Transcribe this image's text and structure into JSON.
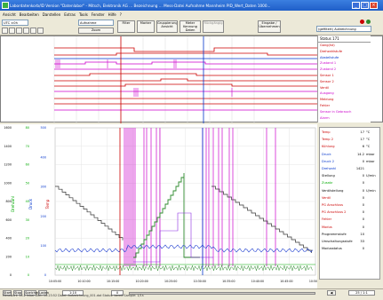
{
  "window": {
    "title": "Labordatenkorb/ID Version \"Datenlabor\" - Mitsch, Elektronik AG ... Bezeichnung ... Mess-Datei Aufnahme Mannheim PID_Wert_Daten 1000...",
    "min": "_",
    "max": "□",
    "close": "×"
  },
  "menu": [
    "Ansicht",
    "Bearbeiten",
    "Darstellen",
    "Extras",
    "Tools",
    "Fenster",
    "Hilfe",
    "?"
  ],
  "toolbar": {
    "combo1": "UTC ±0h",
    "combo2": "Aufnahme",
    "btn_zoom": "Zoom",
    "btn_time": "Zeit",
    "btn_filter": "Filter",
    "btn_marker": "Marker",
    "btn_group": "Gruppierungs-Ansicht",
    "btn_more": "Meter Kennung Daten",
    "btn_reset": "Rückgängig",
    "btn_search": "Suche",
    "btn_apply": "Eingabe / Übernehmen",
    "right_combo": "(gefiltert) Aufzeichnung"
  },
  "statuslist": {
    "header": "Status 171",
    "rows": [
      {
        "label": "Gang(Ist)",
        "value": "1",
        "color": "#cc0000"
      },
      {
        "label": "Drehzahlstufe",
        "value": "1",
        "color": "#cc0000"
      },
      {
        "label": "Abstellstufe",
        "value": "1",
        "color": "#0033cc"
      },
      {
        "label": "Zustand 1",
        "value": "1",
        "color": "#cc00cc"
      },
      {
        "label": "Zustand 2",
        "value": "1",
        "color": "#cc00cc"
      },
      {
        "label": "Sensor 1",
        "value": "1",
        "color": "#cc0000"
      },
      {
        "label": "Sensor 2",
        "value": "1",
        "color": "#cc0000"
      },
      {
        "label": "Ventil",
        "value": "1",
        "color": "#cc0000"
      },
      {
        "label": "Ausgang",
        "value": "0",
        "color": "#cc00cc"
      },
      {
        "label": "Meldung",
        "value": "1",
        "color": "#cc0000"
      },
      {
        "label": "Fehler",
        "value": "1",
        "color": "#cc0000"
      },
      {
        "label": "Sensor in Gebrauch",
        "value": "1",
        "color": "#cc00cc"
      },
      {
        "label": "Alarm",
        "value": "1",
        "color": "#cc00cc"
      }
    ]
  },
  "rightpanel": {
    "rows": [
      {
        "label": "Temp",
        "value": "17",
        "unit": "°C",
        "color": "#cc0000"
      },
      {
        "label": "Temp 2",
        "value": "17",
        "unit": "°C",
        "color": "#cc0000"
      },
      {
        "label": "Kühlung",
        "value": "6",
        "unit": "°C",
        "color": "#cc0000"
      },
      {
        "label": "Druck",
        "value": "14.2",
        "unit": "mbar",
        "color": "#0033cc"
      },
      {
        "label": "Druck 2",
        "value": "0",
        "unit": "mbar",
        "color": "#0033cc"
      },
      {
        "label": "Drehzahl",
        "value": "1421",
        "unit": "",
        "color": "#0033cc"
      },
      {
        "label": "Stellung",
        "value": "0",
        "unit": "U/min",
        "color": "#000"
      },
      {
        "label": "Zusatz",
        "value": "0",
        "unit": "",
        "color": "#00aa00"
      },
      {
        "label": "Ventilstellung",
        "value": "0",
        "unit": "U/min",
        "color": "#000"
      },
      {
        "label": "Ventil",
        "value": "0",
        "unit": "",
        "color": "#cc0000"
      },
      {
        "label": "PG Anschluss",
        "value": "0",
        "unit": "",
        "color": "#cc0000"
      },
      {
        "label": "PG Anschluss 2",
        "value": "0",
        "unit": "",
        "color": "#cc0000"
      },
      {
        "label": "Fehler",
        "value": "0",
        "unit": "",
        "color": "#cc0000"
      },
      {
        "label": "Modus",
        "value": "0",
        "unit": "",
        "color": "#cc0000"
      },
      {
        "label": "Programmstufe",
        "value": "10",
        "unit": "",
        "color": "#000"
      },
      {
        "label": "Umschaltungsstufe",
        "value": "33",
        "unit": "",
        "color": "#000"
      },
      {
        "label": "Modusstatus",
        "value": "0",
        "unit": "",
        "color": "#000"
      }
    ]
  },
  "chart_data": {
    "type": "line",
    "y_axes": [
      {
        "ticks": [
          "1600",
          "1400",
          "1200",
          "1000",
          "800",
          "600",
          "400",
          "200",
          "0"
        ],
        "color": "#000"
      },
      {
        "ticks": [
          "80",
          "70",
          "60",
          "50",
          "40",
          "30",
          "20",
          "10",
          "0"
        ],
        "color": "#00aa00"
      },
      {
        "ticks": [
          "500",
          "400",
          "300",
          "200",
          "100",
          "0"
        ],
        "color": "#0033cc"
      }
    ],
    "axis_labels": {
      "left": "Drehzahl",
      "mid": "Druck",
      "right": "Temp"
    },
    "x_ticks": [
      "10:05:00",
      "10:10:00",
      "10:15:00",
      "10:20:00",
      "10:25:00",
      "10:30:00",
      "10:35:00",
      "10:40:00",
      "10:45:00",
      "10:50:00"
    ],
    "grid": true,
    "colors": {
      "green": "#2e8b2e",
      "blue": "#1f3fd0",
      "magenta": "#cc00cc",
      "black": "#333333",
      "purple": "#8a2be2"
    }
  },
  "bottom": {
    "btns": [
      "Start",
      "Stop",
      "Speichern",
      "Laden"
    ],
    "zoom_label": "1:10",
    "pos_label": "0",
    "page_label": "25 / 1:1",
    "status": "Messwert: 14.2 mbar   Zeit: 10:23:52   Datei: Aufzeichnung_001.dat   Status: bereit   Sample: 1/1s"
  }
}
